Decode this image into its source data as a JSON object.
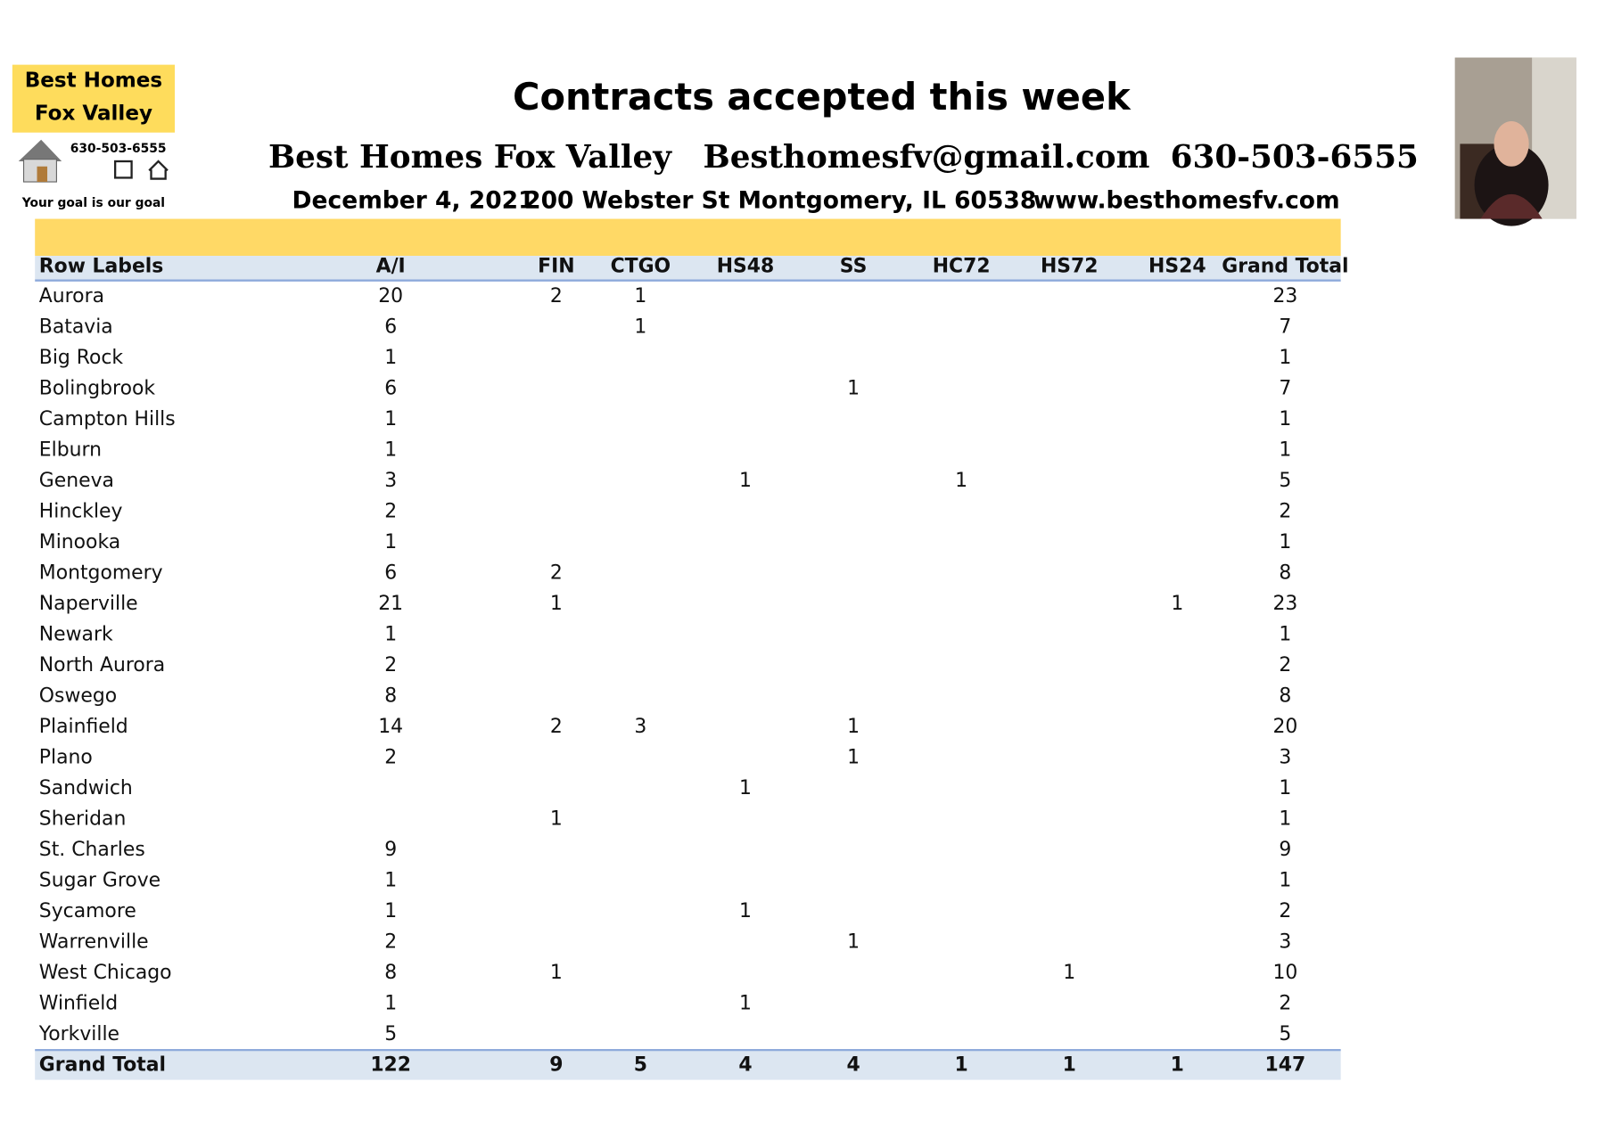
{
  "logo": {
    "line1": "Best Homes",
    "line2": "Fox Valley",
    "phone": "630-503-6555",
    "tagline": "Your goal is our goal"
  },
  "header": {
    "title": "Contracts accepted this week",
    "contact": [
      "Best Homes Fox Valley",
      "Besthomesfv@gmail.com",
      "630-503-6555"
    ],
    "info": [
      "December 4, 2021",
      "200 Webster St Montgomery, IL 60538",
      "www.besthomesfv.com"
    ]
  },
  "table": {
    "columns": [
      "Row Labels",
      "A/I",
      "FIN",
      "CTGO",
      "HS48",
      "SS",
      "HC72",
      "HS72",
      "HS24",
      "Grand Total"
    ],
    "rows": [
      [
        "Aurora",
        20,
        2,
        1,
        null,
        null,
        null,
        null,
        null,
        23
      ],
      [
        "Batavia",
        6,
        null,
        1,
        null,
        null,
        null,
        null,
        null,
        7
      ],
      [
        "Big Rock",
        1,
        null,
        null,
        null,
        null,
        null,
        null,
        null,
        1
      ],
      [
        "Bolingbrook",
        6,
        null,
        null,
        null,
        1,
        null,
        null,
        null,
        7
      ],
      [
        "Campton Hills",
        1,
        null,
        null,
        null,
        null,
        null,
        null,
        null,
        1
      ],
      [
        "Elburn",
        1,
        null,
        null,
        null,
        null,
        null,
        null,
        null,
        1
      ],
      [
        "Geneva",
        3,
        null,
        null,
        1,
        null,
        1,
        null,
        null,
        5
      ],
      [
        "Hinckley",
        2,
        null,
        null,
        null,
        null,
        null,
        null,
        null,
        2
      ],
      [
        "Minooka",
        1,
        null,
        null,
        null,
        null,
        null,
        null,
        null,
        1
      ],
      [
        "Montgomery",
        6,
        2,
        null,
        null,
        null,
        null,
        null,
        null,
        8
      ],
      [
        "Naperville",
        21,
        1,
        null,
        null,
        null,
        null,
        null,
        1,
        23
      ],
      [
        "Newark",
        1,
        null,
        null,
        null,
        null,
        null,
        null,
        null,
        1
      ],
      [
        "North Aurora",
        2,
        null,
        null,
        null,
        null,
        null,
        null,
        null,
        2
      ],
      [
        "Oswego",
        8,
        null,
        null,
        null,
        null,
        null,
        null,
        null,
        8
      ],
      [
        "Plainfield",
        14,
        2,
        3,
        null,
        1,
        null,
        null,
        null,
        20
      ],
      [
        "Plano",
        2,
        null,
        null,
        null,
        1,
        null,
        null,
        null,
        3
      ],
      [
        "Sandwich",
        null,
        null,
        null,
        1,
        null,
        null,
        null,
        null,
        1
      ],
      [
        "Sheridan",
        null,
        1,
        null,
        null,
        null,
        null,
        null,
        null,
        1
      ],
      [
        "St. Charles",
        9,
        null,
        null,
        null,
        null,
        null,
        null,
        null,
        9
      ],
      [
        "Sugar Grove",
        1,
        null,
        null,
        null,
        null,
        null,
        null,
        null,
        1
      ],
      [
        "Sycamore",
        1,
        null,
        null,
        1,
        null,
        null,
        null,
        null,
        2
      ],
      [
        "Warrenville",
        2,
        null,
        null,
        null,
        1,
        null,
        null,
        null,
        3
      ],
      [
        "West Chicago",
        8,
        1,
        null,
        null,
        null,
        null,
        1,
        null,
        10
      ],
      [
        "Winfield",
        1,
        null,
        null,
        1,
        null,
        null,
        null,
        null,
        2
      ],
      [
        "Yorkville",
        5,
        null,
        null,
        null,
        null,
        null,
        null,
        null,
        5
      ]
    ],
    "total": [
      "Grand Total",
      122,
      9,
      5,
      4,
      4,
      1,
      1,
      1,
      147
    ]
  }
}
